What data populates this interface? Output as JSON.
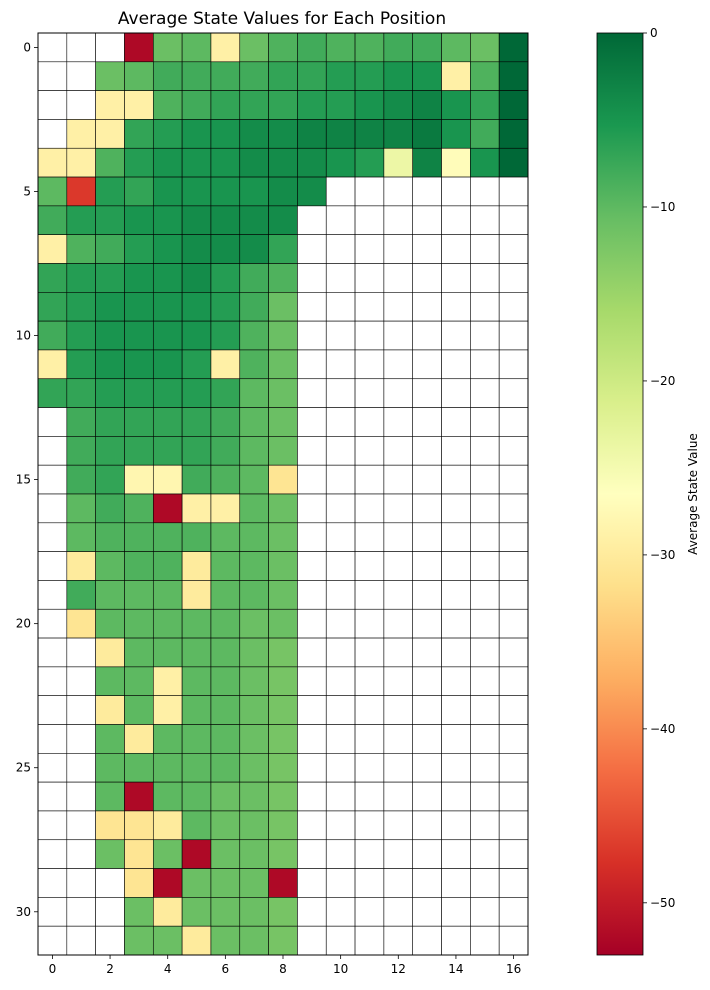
{
  "chart_data": {
    "type": "heatmap",
    "title": "Average State Values for Each Position",
    "colorbar_label": "Average State Value",
    "colormap": "RdYlGn",
    "vmin": -53,
    "vmax": 0,
    "x_ticks": [
      0,
      2,
      4,
      6,
      8,
      10,
      12,
      14,
      16
    ],
    "y_ticks": [
      0,
      5,
      10,
      15,
      20,
      25,
      30
    ],
    "colorbar_ticks": [
      0,
      -10,
      -20,
      -30,
      -40,
      -50
    ],
    "n_rows": 32,
    "n_cols": 17,
    "grid": true,
    "values": [
      [
        null,
        null,
        null,
        -52,
        -11,
        -10,
        -29,
        -11,
        -9,
        -8,
        -9,
        -9,
        -8,
        -8,
        -10,
        -11,
        0
      ],
      [
        null,
        null,
        -11,
        -10,
        -8,
        -8,
        -8,
        -8,
        -7,
        -7,
        -6,
        -6,
        -5,
        -5,
        -29,
        -9,
        0
      ],
      [
        null,
        null,
        -29,
        -29,
        -9,
        -8,
        -7,
        -7,
        -7,
        -6,
        -6,
        -5,
        -4,
        -3,
        -5,
        -7,
        0
      ],
      [
        null,
        -29,
        -29,
        -7,
        -6,
        -5,
        -5,
        -4,
        -4,
        -3,
        -3,
        -3,
        -3,
        -2,
        -5,
        -8,
        0
      ],
      [
        -29,
        -29,
        -9,
        -6,
        -5,
        -5,
        -5,
        -4,
        -4,
        -4,
        -5,
        -6,
        -24,
        -3,
        -27,
        -5,
        0
      ],
      [
        -10,
        -47,
        -6,
        -7,
        -5,
        -5,
        -5,
        -5,
        -4,
        -4,
        null,
        null,
        null,
        null,
        null,
        null,
        null
      ],
      [
        -8,
        -6,
        -6,
        -5,
        -5,
        -4,
        -4,
        -4,
        -4,
        null,
        null,
        null,
        null,
        null,
        null,
        null,
        null
      ],
      [
        -29,
        -9,
        -8,
        -6,
        -5,
        -4,
        -4,
        -4,
        -7,
        null,
        null,
        null,
        null,
        null,
        null,
        null,
        null
      ],
      [
        -7,
        -6,
        -6,
        -5,
        -5,
        -4,
        -6,
        -8,
        -9,
        null,
        null,
        null,
        null,
        null,
        null,
        null,
        null
      ],
      [
        -7,
        -6,
        -5,
        -5,
        -5,
        -5,
        -6,
        -8,
        -11,
        null,
        null,
        null,
        null,
        null,
        null,
        null,
        null
      ],
      [
        -8,
        -6,
        -5,
        -5,
        -5,
        -5,
        -6,
        -9,
        -11,
        null,
        null,
        null,
        null,
        null,
        null,
        null,
        null
      ],
      [
        -29,
        -6,
        -5,
        -5,
        -5,
        -6,
        -29,
        -9,
        -11,
        null,
        null,
        null,
        null,
        null,
        null,
        null,
        null
      ],
      [
        -7,
        -7,
        -6,
        -6,
        -6,
        -6,
        -7,
        -10,
        -11,
        null,
        null,
        null,
        null,
        null,
        null,
        null,
        null
      ],
      [
        null,
        -8,
        -7,
        -7,
        -7,
        -7,
        -8,
        -10,
        -11,
        null,
        null,
        null,
        null,
        null,
        null,
        null,
        null
      ],
      [
        null,
        -8,
        -7,
        -7,
        -7,
        -7,
        -8,
        -10,
        -11,
        null,
        null,
        null,
        null,
        null,
        null,
        null,
        null
      ],
      [
        null,
        -8,
        -7,
        -28,
        -28,
        -8,
        -9,
        -10,
        -31,
        null,
        null,
        null,
        null,
        null,
        null,
        null,
        null
      ],
      [
        null,
        -10,
        -8,
        -9,
        -52,
        -29,
        -29,
        -10,
        -11,
        null,
        null,
        null,
        null,
        null,
        null,
        null,
        null
      ],
      [
        null,
        -10,
        -9,
        -9,
        -9,
        -9,
        -10,
        -10,
        -11,
        null,
        null,
        null,
        null,
        null,
        null,
        null,
        null
      ],
      [
        null,
        -30,
        -10,
        -9,
        -9,
        -30,
        -10,
        -10,
        -11,
        null,
        null,
        null,
        null,
        null,
        null,
        null,
        null
      ],
      [
        null,
        -8,
        -10,
        -10,
        -10,
        -30,
        -10,
        -10,
        -11,
        null,
        null,
        null,
        null,
        null,
        null,
        null,
        null
      ],
      [
        null,
        -31,
        -10,
        -10,
        -10,
        -10,
        -10,
        -11,
        -11,
        null,
        null,
        null,
        null,
        null,
        null,
        null,
        null
      ],
      [
        null,
        null,
        -30,
        -10,
        -10,
        -10,
        -10,
        -11,
        -12,
        null,
        null,
        null,
        null,
        null,
        null,
        null,
        null
      ],
      [
        null,
        null,
        -10,
        -10,
        -29,
        -10,
        -10,
        -11,
        -12,
        null,
        null,
        null,
        null,
        null,
        null,
        null,
        null
      ],
      [
        null,
        null,
        -30,
        -10,
        -29,
        -10,
        -10,
        -11,
        -12,
        null,
        null,
        null,
        null,
        null,
        null,
        null,
        null
      ],
      [
        null,
        null,
        -10,
        -30,
        -10,
        -10,
        -10,
        -11,
        -12,
        null,
        null,
        null,
        null,
        null,
        null,
        null,
        null
      ],
      [
        null,
        null,
        -10,
        -10,
        -10,
        -10,
        -10,
        -11,
        -12,
        null,
        null,
        null,
        null,
        null,
        null,
        null,
        null
      ],
      [
        null,
        null,
        -10,
        -52,
        -10,
        -10,
        -11,
        -11,
        -12,
        null,
        null,
        null,
        null,
        null,
        null,
        null,
        null
      ],
      [
        null,
        null,
        -31,
        -31,
        -30,
        -10,
        -11,
        -11,
        -12,
        null,
        null,
        null,
        null,
        null,
        null,
        null,
        null
      ],
      [
        null,
        null,
        -11,
        -31,
        -11,
        -52,
        -11,
        -11,
        -12,
        null,
        null,
        null,
        null,
        null,
        null,
        null,
        null
      ],
      [
        null,
        null,
        null,
        -31,
        -52,
        -11,
        -11,
        -11,
        -52,
        null,
        null,
        null,
        null,
        null,
        null,
        null,
        null
      ],
      [
        null,
        null,
        null,
        -11,
        -30,
        -11,
        -11,
        -11,
        -12,
        null,
        null,
        null,
        null,
        null,
        null,
        null,
        null
      ],
      [
        null,
        null,
        null,
        -11,
        -11,
        -30,
        -11,
        -11,
        -12,
        null,
        null,
        null,
        null,
        null,
        null,
        null,
        null
      ]
    ]
  }
}
